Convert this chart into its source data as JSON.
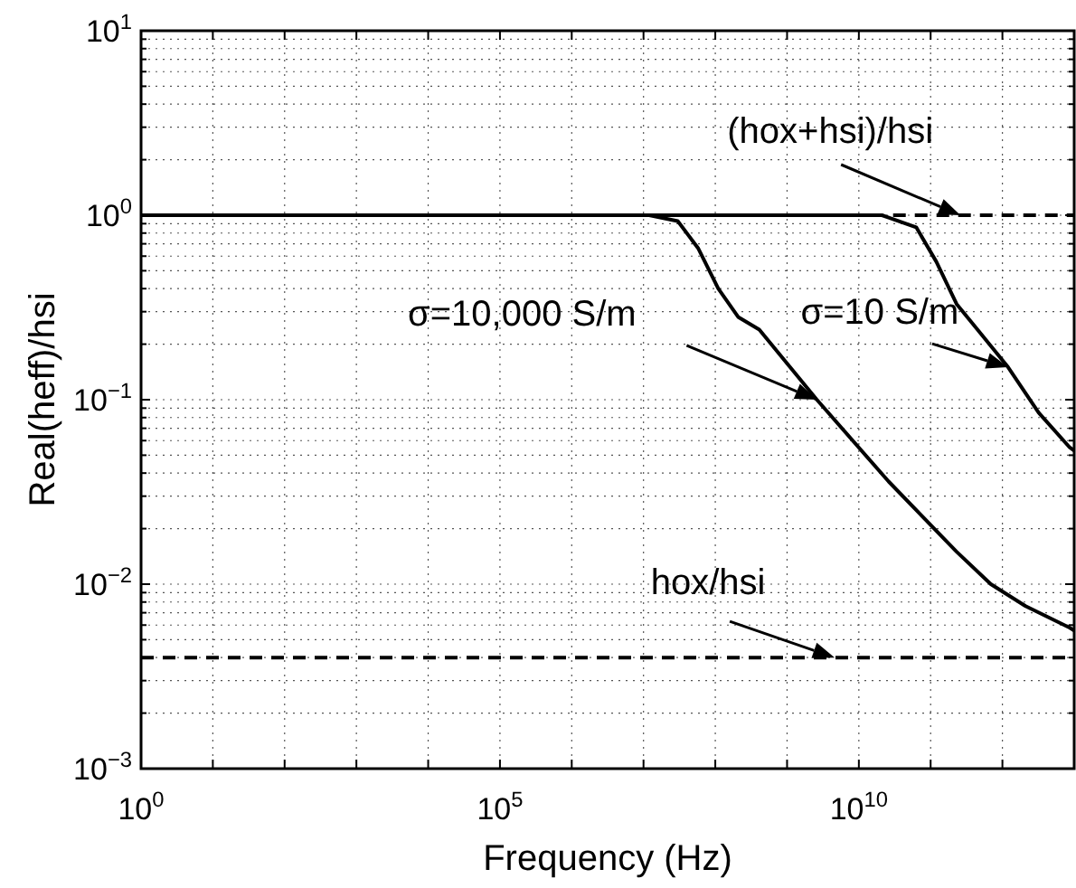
{
  "chart_data": {
    "type": "line",
    "xlabel": "Frequency (Hz)",
    "ylabel": "Real(heff)/hsi",
    "log": "xy",
    "grid": true,
    "line_style": "solid",
    "marker": "none",
    "xlim": [
      1,
      10000000000000.0
    ],
    "xticks": [
      {
        "value": 1,
        "label": "10$^{0}$"
      },
      {
        "value": 10.0,
        "label": null
      },
      {
        "value": 100.0,
        "label": null
      },
      {
        "value": 1000.0,
        "label": null
      },
      {
        "value": 10000.0,
        "label": null
      },
      {
        "value": 100000.0,
        "label": "10$^{5}$"
      },
      {
        "value": 1000000.0,
        "label": null
      },
      {
        "value": 10000000.0,
        "label": null
      },
      {
        "value": 100000000.0,
        "label": null
      },
      {
        "value": 1000000000.0,
        "label": null
      },
      {
        "value": 10000000000.0,
        "label": "10$^{10}$"
      },
      {
        "value": 100000000000.0,
        "label": null
      },
      {
        "value": 1000000000000.0,
        "label": null
      },
      {
        "value": 10000000000000.0,
        "label": null
      }
    ],
    "ylim": [
      0.001,
      10
    ],
    "yticks": [
      {
        "value": 0.001,
        "label": "10$^{−3}$"
      },
      {
        "value": 0.002,
        "label": null
      },
      {
        "value": 0.003,
        "label": null
      },
      {
        "value": 0.004,
        "label": null
      },
      {
        "value": 0.005,
        "label": null
      },
      {
        "value": 0.006,
        "label": null
      },
      {
        "value": 0.007,
        "label": null
      },
      {
        "value": 0.008,
        "label": null
      },
      {
        "value": 0.009,
        "label": null
      },
      {
        "value": 0.01,
        "label": "10$^{−2}$"
      },
      {
        "value": 0.02,
        "label": null
      },
      {
        "value": 0.03,
        "label": null
      },
      {
        "value": 0.04,
        "label": null
      },
      {
        "value": 0.05,
        "label": null
      },
      {
        "value": 0.06,
        "label": null
      },
      {
        "value": 0.07,
        "label": null
      },
      {
        "value": 0.08,
        "label": null
      },
      {
        "value": 0.09,
        "label": null
      },
      {
        "value": 0.1,
        "label": "10$^{−1}$"
      },
      {
        "value": 0.2,
        "label": null
      },
      {
        "value": 0.3,
        "label": null
      },
      {
        "value": 0.4,
        "label": null
      },
      {
        "value": 0.5,
        "label": null
      },
      {
        "value": 0.6,
        "label": null
      },
      {
        "value": 0.7,
        "label": null
      },
      {
        "value": 0.8,
        "label": null
      },
      {
        "value": 0.9,
        "label": null
      },
      {
        "value": 1,
        "label": "10$^{0}$"
      },
      {
        "value": 2,
        "label": null
      },
      {
        "value": 3,
        "label": null
      },
      {
        "value": 4,
        "label": null
      },
      {
        "value": 5,
        "label": null
      },
      {
        "value": 6,
        "label": null
      },
      {
        "value": 7,
        "label": null
      },
      {
        "value": 8,
        "label": null
      },
      {
        "value": 9,
        "label": null
      },
      {
        "value": 10,
        "label": "10$^{1}$"
      }
    ],
    "series": [
      {
        "name": "(hox+hsi)/hsi",
        "color": "#000000",
        "line_style": "dashed",
        "x": [
          30000000000.0,
          260000000000.0,
          10000000000000.0
        ],
        "values": [
          1,
          1,
          1
        ]
      },
      {
        "name": "hox/hsi",
        "color": "#000000",
        "line_style": "dashed",
        "x": [
          1,
          4600000000.0,
          10000000000000.0
        ],
        "values": [
          0.004,
          0.004,
          0.004
        ]
      },
      {
        "name": "σ=10,000 S/m",
        "color": "#000000",
        "x": [
          1,
          12000000.0,
          30000000.0,
          58000000.0,
          110000000.0,
          210000000.0,
          410000000.0,
          2600000000.0,
          26000000000.0,
          230000000000.0,
          690000000000.0,
          2100000000000.0,
          8700000000000.0,
          10000000000000.0
        ],
        "values": [
          1,
          1,
          0.93,
          0.66,
          0.4,
          0.28,
          0.24,
          0.1,
          0.036,
          0.015,
          0.01,
          0.0076,
          0.0058,
          0.0056
        ]
      },
      {
        "name": "σ=10 S/m",
        "color": "#000000",
        "x": [
          1,
          21000000000.0,
          26000000000.0,
          63000000000.0,
          120000000000.0,
          230000000000.0,
          450000000000.0,
          1200000000000.0,
          3200000000000.0,
          8700000000000.0,
          10000000000000.0
        ],
        "values": [
          1,
          1,
          0.97,
          0.86,
          0.56,
          0.33,
          0.24,
          0.15,
          0.085,
          0.055,
          0.053
        ]
      }
    ]
  }
}
